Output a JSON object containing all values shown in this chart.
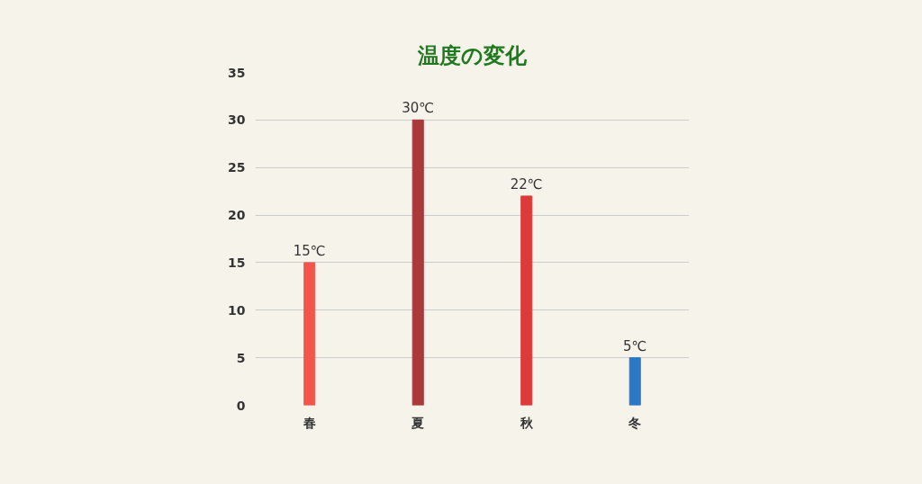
{
  "chart_data": {
    "type": "bar",
    "title": "温度の変化",
    "categories": [
      "春",
      "夏",
      "秋",
      "冬"
    ],
    "values": [
      15,
      30,
      22,
      5
    ],
    "colors": [
      "#f2554b",
      "#a9393b",
      "#dc3b39",
      "#2b79c6"
    ],
    "value_labels": [
      "15℃",
      "30℃",
      "22℃",
      "5℃"
    ],
    "ylim": [
      0,
      35
    ],
    "yticks": [
      0,
      5,
      10,
      15,
      20,
      25,
      30,
      35
    ],
    "grid": "y"
  }
}
